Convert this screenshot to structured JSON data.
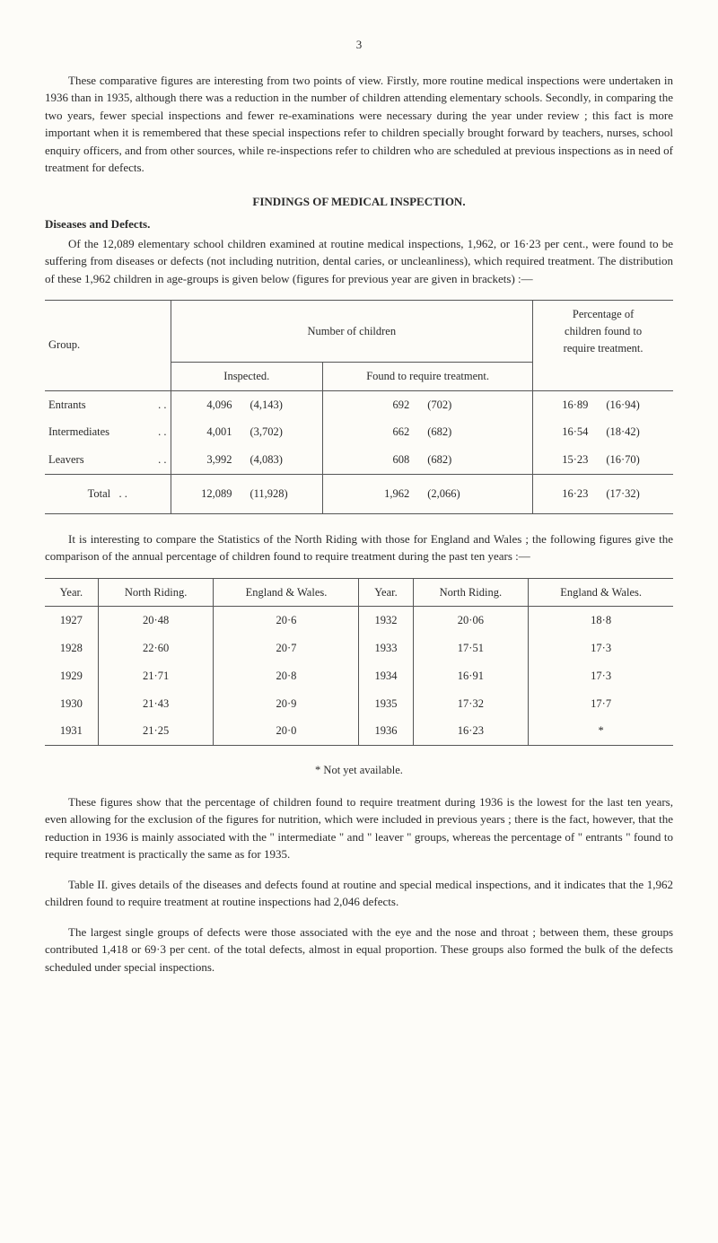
{
  "page_number": "3",
  "para1": "These comparative figures are interesting from two points of view. Firstly, more routine medical inspections were undertaken in 1936 than in 1935, although there was a reduction in the number of children attending elementary schools. Secondly, in comparing the two years, fewer special inspections and fewer re-examinations were necessary during the year under review ; this fact is more important when it is remembered that these special inspections refer to children specially brought forward by teachers, nurses, school enquiry officers, and from other sources, while re-inspections refer to children who are scheduled at previous inspections as in need of treatment for defects.",
  "heading1": "FINDINGS OF MEDICAL INSPECTION.",
  "subheading1": "Diseases and Defects.",
  "para2": "Of the 12,089 elementary school children examined at routine medical inspections, 1,962, or 16·23 per cent., were found to be suffering from diseases or defects (not including nutrition, dental caries, or uncleanliness), which required treatment. The distribution of these 1,962 children in age-groups is given below (figures for previous year are given in brackets) :—",
  "table1": {
    "col_group": "Group.",
    "col_number": "Number of children",
    "col_percentage_1": "Percentage of",
    "col_percentage_2": "children found to",
    "col_percentage_3": "require treatment.",
    "col_inspected": "Inspected.",
    "col_found": "Found to require treatment.",
    "rows": [
      {
        "label": "Entrants",
        "dots": ". .",
        "ins": "4,096",
        "ins_p": "(4,143)",
        "req": "692",
        "req_p": "(702)",
        "pct": "16·89",
        "pct_p": "(16·94)"
      },
      {
        "label": "Intermediates",
        "dots": ". .",
        "ins": "4,001",
        "ins_p": "(3,702)",
        "req": "662",
        "req_p": "(682)",
        "pct": "16·54",
        "pct_p": "(18·42)"
      },
      {
        "label": "Leavers",
        "dots": ". .",
        "ins": "3,992",
        "ins_p": "(4,083)",
        "req": "608",
        "req_p": "(682)",
        "pct": "15·23",
        "pct_p": "(16·70)"
      }
    ],
    "total": {
      "label": "Total",
      "dots": ". .",
      "ins": "12,089",
      "ins_p": "(11,928)",
      "req": "1,962",
      "req_p": "(2,066)",
      "pct": "16·23",
      "pct_p": "(17·32)"
    }
  },
  "para3": "It is interesting to compare the Statistics of the North Riding with those for England and Wales ; the following figures give the comparison of the annual percentage of children found to require treatment during the past ten years :—",
  "table2": {
    "headers": [
      "Year.",
      "North Riding.",
      "England & Wales.",
      "Year.",
      "North Riding.",
      "England & Wales."
    ],
    "rows": [
      [
        "1927",
        "20·48",
        "20·6",
        "1932",
        "20·06",
        "18·8"
      ],
      [
        "1928",
        "22·60",
        "20·7",
        "1933",
        "17·51",
        "17·3"
      ],
      [
        "1929",
        "21·71",
        "20·8",
        "1934",
        "16·91",
        "17·3"
      ],
      [
        "1930",
        "21·43",
        "20·9",
        "1935",
        "17·32",
        "17·7"
      ],
      [
        "1931",
        "21·25",
        "20·0",
        "1936",
        "16·23",
        "*"
      ]
    ]
  },
  "footnote": "* Not yet available.",
  "para4": "These figures show that the percentage of children found to require treatment during 1936 is the lowest for the last ten years, even allowing for the exclusion of the figures for nutrition, which were included in previous years ; there is the fact, however, that the reduction in 1936 is mainly associated with the \" intermediate \" and \" leaver \" groups, whereas the percentage of \" entrants \" found to require treatment is practically the same as for 1935.",
  "para5": "Table II. gives details of the diseases and defects found at routine and special medical inspections, and it indicates that the 1,962 children found to require treatment at routine inspections had 2,046 defects.",
  "para6": "The largest single groups of defects were those associated with the eye and the nose and throat ; between them, these groups contributed 1,418 or 69·3 per cent. of the total defects, almost in equal proportion. These groups also formed the bulk of the defects scheduled under special inspections."
}
